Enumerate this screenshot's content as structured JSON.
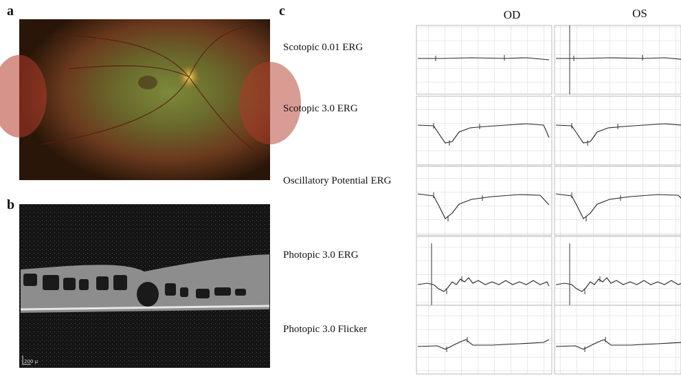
{
  "panels": {
    "a": {
      "label": "a"
    },
    "b": {
      "label": "b",
      "scale_bar": "200 µ"
    },
    "c": {
      "label": "c",
      "columns": [
        "OD",
        "OS"
      ],
      "rows": [
        "Scotopic 0.01 ERG",
        "Scotopic 3.0 ERG",
        "Oscillatory Potential ERG",
        "Photopic 3.0 ERG",
        "Photopic 3.0 Flicker"
      ]
    }
  }
}
